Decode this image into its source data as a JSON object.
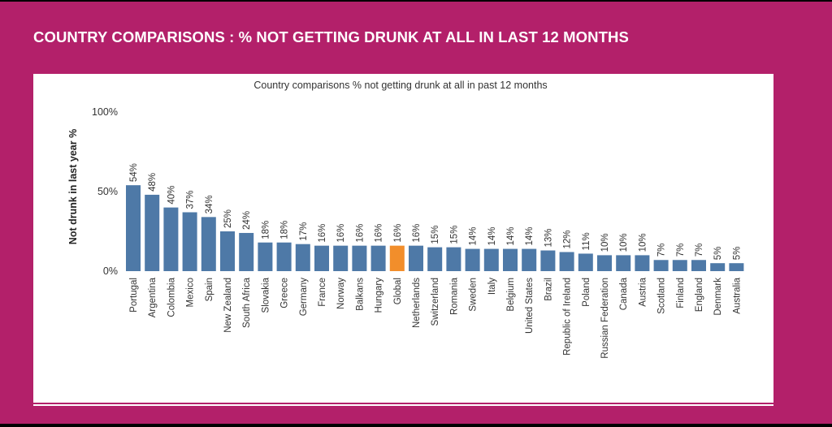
{
  "slide": {
    "title": "COUNTRY COMPARISONS : % NOT GETTING DRUNK AT ALL IN LAST 12 MONTHS"
  },
  "chart_data": {
    "type": "bar",
    "title": "Country comparisons % not getting drunk at all in past 12 months",
    "xlabel": "",
    "ylabel": "Not drunk in last year %",
    "ylim": [
      0,
      100
    ],
    "yticks": [
      0,
      50,
      100
    ],
    "ytick_labels": [
      "0%",
      "50%",
      "100%"
    ],
    "grid": false,
    "legend": "none",
    "colors": {
      "bar": "#4e79a7",
      "highlight": "#f28e2b"
    },
    "highlight": "Global",
    "categories": [
      "Portugal",
      "Argentina",
      "Colombia",
      "Mexico",
      "Spain",
      "New Zealand",
      "South Africa",
      "Slovakia",
      "Greece",
      "Germany",
      "France",
      "Norway",
      "Balkans",
      "Hungary",
      "Global",
      "Netherlands",
      "Switzerland",
      "Romania",
      "Sweden",
      "Italy",
      "Belgium",
      "United States",
      "Brazil",
      "Republic of Ireland",
      "Poland",
      "Russian Federation",
      "Canada",
      "Austria",
      "Scotland",
      "Finland",
      "England",
      "Denmark",
      "Australia"
    ],
    "values": [
      54,
      48,
      40,
      37,
      34,
      25,
      24,
      18,
      18,
      17,
      16,
      16,
      16,
      16,
      16,
      16,
      15,
      15,
      14,
      14,
      14,
      14,
      13,
      12,
      11,
      10,
      10,
      10,
      7,
      7,
      7,
      5,
      5
    ],
    "value_labels": [
      "54%",
      "48%",
      "40%",
      "37%",
      "34%",
      "25%",
      "24%",
      "18%",
      "18%",
      "17%",
      "16%",
      "16%",
      "16%",
      "16%",
      "16%",
      "16%",
      "15%",
      "15%",
      "14%",
      "14%",
      "14%",
      "14%",
      "13%",
      "12%",
      "11%",
      "10%",
      "10%",
      "10%",
      "7%",
      "7%",
      "7%",
      "5%",
      "5%"
    ]
  }
}
